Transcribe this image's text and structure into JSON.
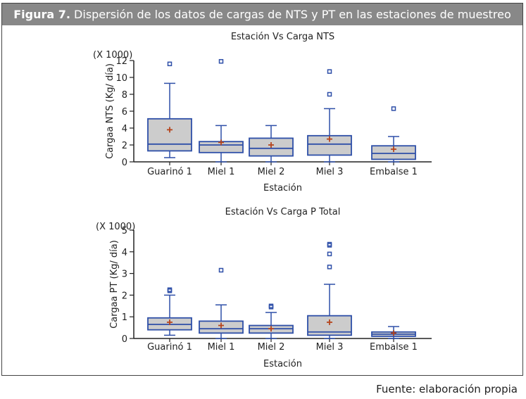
{
  "figure": {
    "label": "Figura 7.",
    "caption": "Dispersión de los datos de cargas de NTS y PT en las estaciones de muestreo",
    "source": "Fuente: elaboración propia"
  },
  "colors": {
    "box_fill": "#cccccc",
    "box_stroke": "#2e4fa8",
    "mean_marker": "#b5441c",
    "outlier": "#2e4fa8",
    "outlier_center": "#3a8a5a"
  },
  "chart_data": [
    {
      "type": "boxplot",
      "title": "Estación Vs Carga NTS",
      "xlabel": "Estación",
      "ylabel": "Cargaa NTS (Kg/ día)",
      "y_multiplier": "(X 1000)",
      "ylim": [
        0,
        12
      ],
      "yticks": [
        "0",
        "2",
        "4",
        "6",
        "8",
        "10",
        "12"
      ],
      "categories": [
        "Guarinó 1",
        "Miel 1",
        "Miel 2",
        "Miel 3",
        "Embalse 1"
      ],
      "series": [
        {
          "min": 0.5,
          "q1": 1.3,
          "median": 2.1,
          "q3": 5.1,
          "max": 9.3,
          "mean": 3.8,
          "outliers": [
            11.6
          ]
        },
        {
          "min": 0.0,
          "q1": 1.1,
          "median": 2.0,
          "q3": 2.4,
          "max": 4.3,
          "mean": 2.3,
          "outliers": [
            11.9
          ]
        },
        {
          "min": 0.0,
          "q1": 0.7,
          "median": 1.6,
          "q3": 2.8,
          "max": 4.3,
          "mean": 2.0,
          "outliers": []
        },
        {
          "min": 0.0,
          "q1": 0.8,
          "median": 2.1,
          "q3": 3.1,
          "max": 6.3,
          "mean": 2.7,
          "outliers": [
            8.0,
            10.7
          ]
        },
        {
          "min": 0.0,
          "q1": 0.3,
          "median": 1.0,
          "q3": 1.9,
          "max": 3.0,
          "mean": 1.5,
          "outliers": [
            6.3
          ]
        }
      ]
    },
    {
      "type": "boxplot",
      "title": "Estación Vs Carga P Total",
      "xlabel": "Estación",
      "ylabel": "Cargaa PT (Kg/ día)",
      "y_multiplier": "(X 1000)",
      "ylim": [
        0,
        5
      ],
      "yticks": [
        "0",
        "1",
        "2",
        "3",
        "4",
        "5"
      ],
      "categories": [
        "Guarinó 1",
        "Miel 1",
        "Miel 2",
        "Miel 3",
        "Embalse 1"
      ],
      "series": [
        {
          "min": 0.15,
          "q1": 0.4,
          "median": 0.65,
          "q3": 0.95,
          "max": 2.0,
          "mean": 0.75,
          "outliers": [
            2.2,
            2.25
          ]
        },
        {
          "min": 0.0,
          "q1": 0.25,
          "median": 0.45,
          "q3": 0.8,
          "max": 1.55,
          "mean": 0.6,
          "outliers": [
            3.15
          ]
        },
        {
          "min": 0.0,
          "q1": 0.25,
          "median": 0.45,
          "q3": 0.6,
          "max": 1.2,
          "mean": 0.45,
          "outliers": [
            1.45,
            1.5
          ]
        },
        {
          "min": 0.0,
          "q1": 0.15,
          "median": 0.3,
          "q3": 1.05,
          "max": 2.5,
          "mean": 0.75,
          "outliers": [
            3.3,
            3.9,
            4.3,
            4.35
          ]
        },
        {
          "min": 0.0,
          "q1": 0.1,
          "median": 0.2,
          "q3": 0.3,
          "max": 0.55,
          "mean": 0.25,
          "outliers": []
        }
      ]
    }
  ]
}
